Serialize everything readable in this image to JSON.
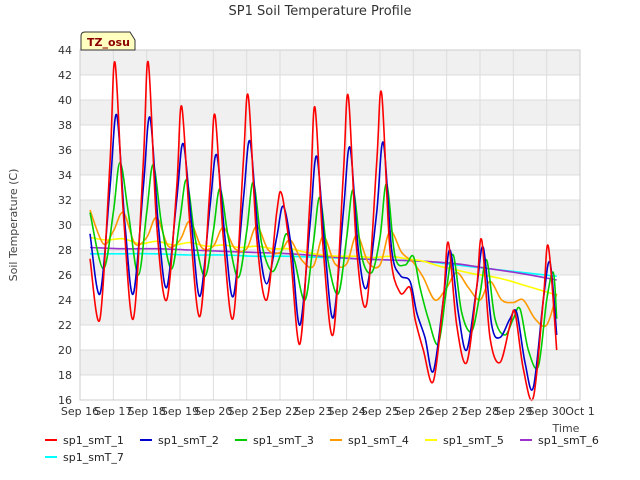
{
  "chart_data": {
    "type": "line",
    "title": "SP1 Soil Temperature Profile",
    "xlabel": "Time",
    "ylabel": "Soil Temperature (C)",
    "annotation": "TZ_osu",
    "ylim": [
      16,
      44
    ],
    "xlim": [
      0,
      15
    ],
    "x_unit": "days from Sep 16",
    "y_ticks": [
      16,
      18,
      20,
      22,
      24,
      26,
      28,
      30,
      32,
      34,
      36,
      38,
      40,
      42,
      44
    ],
    "x_ticks": [
      "Sep 16",
      "Sep 17",
      "Sep 18",
      "Sep 19",
      "Sep 20",
      "Sep 21",
      "Sep 22",
      "Sep 23",
      "Sep 24",
      "Sep 25",
      "Sep 26",
      "Sep 27",
      "Sep 28",
      "Sep 29",
      "Sep 30",
      "Oct 1"
    ],
    "grid": true,
    "legend_position": "bottom",
    "series": [
      {
        "name": "sp1_smT_1",
        "color": "#ff0000",
        "x": [
          0.3,
          0.6,
          0.9,
          1.05,
          1.3,
          1.6,
          1.9,
          2.05,
          2.3,
          2.6,
          2.9,
          3.05,
          3.3,
          3.6,
          3.9,
          4.05,
          4.3,
          4.6,
          4.9,
          5.05,
          5.3,
          5.6,
          5.9,
          6.05,
          6.3,
          6.6,
          6.9,
          7.05,
          7.3,
          7.6,
          7.9,
          8.05,
          8.3,
          8.6,
          8.9,
          9.05,
          9.3,
          9.6,
          9.9,
          10.05,
          10.3,
          10.6,
          10.9,
          11.05,
          11.3,
          11.6,
          11.9,
          12.05,
          12.3,
          12.6,
          12.9,
          13.05,
          13.3,
          13.6,
          13.9,
          14.05,
          14.3
        ],
        "y": [
          27.3,
          22.5,
          35,
          43,
          31,
          22.5,
          35,
          43,
          30,
          24,
          33,
          39.5,
          30,
          22.7,
          33,
          38.8,
          29,
          22.6,
          35,
          40.3,
          29,
          24,
          31,
          32.5,
          28,
          20.5,
          32,
          39.4,
          28,
          21.3,
          34,
          40.3,
          28,
          23.7,
          35,
          40.5,
          28,
          24.6,
          25,
          22.5,
          20,
          17.5,
          24,
          28.6,
          22,
          19,
          25,
          28.8,
          21,
          19,
          22,
          23,
          18.5,
          16.2,
          24,
          28.3,
          20
        ]
      },
      {
        "name": "sp1_smT_2",
        "color": "#0000cc",
        "x": [
          0.3,
          0.6,
          0.9,
          1.1,
          1.35,
          1.6,
          1.9,
          2.1,
          2.35,
          2.6,
          2.9,
          3.1,
          3.35,
          3.6,
          3.9,
          4.1,
          4.35,
          4.6,
          4.9,
          5.1,
          5.35,
          5.6,
          5.9,
          6.1,
          6.35,
          6.6,
          6.9,
          7.1,
          7.35,
          7.6,
          7.9,
          8.1,
          8.35,
          8.6,
          8.9,
          9.1,
          9.35,
          9.6,
          9.9,
          10.1,
          10.35,
          10.6,
          10.9,
          11.1,
          11.35,
          11.6,
          11.9,
          12.1,
          12.35,
          12.6,
          12.9,
          13.1,
          13.35,
          13.6,
          13.9,
          14.1,
          14.3
        ],
        "y": [
          29.3,
          24.5,
          33,
          38.8,
          30,
          24.5,
          33,
          38.6,
          30,
          25,
          32,
          36.5,
          30,
          24.3,
          31.5,
          35.6,
          29,
          24.3,
          32,
          36.7,
          29,
          25.3,
          29,
          31.5,
          28,
          22,
          30,
          35.5,
          28,
          22.6,
          31,
          36.2,
          28,
          25,
          31,
          36.6,
          28,
          26,
          25.5,
          23,
          21,
          18.3,
          24,
          28,
          23,
          20,
          25,
          28.2,
          22,
          21,
          22.5,
          23,
          19,
          17,
          24,
          27,
          21.2
        ]
      },
      {
        "name": "sp1_smT_3",
        "color": "#00cc00",
        "x": [
          0.3,
          0.7,
          1.0,
          1.2,
          1.45,
          1.75,
          2.0,
          2.2,
          2.45,
          2.75,
          3.0,
          3.2,
          3.45,
          3.75,
          4.0,
          4.2,
          4.45,
          4.75,
          5.0,
          5.2,
          5.45,
          5.75,
          6.0,
          6.2,
          6.45,
          6.75,
          7.0,
          7.2,
          7.45,
          7.75,
          8.0,
          8.2,
          8.45,
          8.75,
          9.0,
          9.2,
          9.45,
          9.75,
          10.0,
          10.2,
          10.45,
          10.75,
          11.0,
          11.2,
          11.45,
          11.75,
          12.0,
          12.2,
          12.45,
          12.75,
          13.0,
          13.2,
          13.45,
          13.75,
          14.0,
          14.2,
          14.3
        ],
        "y": [
          31,
          26.5,
          31,
          35,
          31,
          26,
          31,
          34.8,
          30,
          26.5,
          30.5,
          33.6,
          29,
          25.9,
          29.5,
          32.9,
          29,
          25.8,
          29.5,
          33.4,
          28.5,
          26.3,
          27.5,
          29.3,
          27,
          24,
          28.5,
          32.2,
          27,
          24.5,
          29,
          32.8,
          27.5,
          26.2,
          29,
          33.3,
          27.5,
          26.8,
          27.5,
          25,
          22.5,
          20.5,
          25,
          27.6,
          23,
          21.5,
          24.5,
          27.2,
          22.5,
          21.2,
          22.5,
          23.3,
          20,
          18.7,
          24,
          26.2,
          22.5
        ]
      },
      {
        "name": "sp1_smT_4",
        "color": "#ff9900",
        "x": [
          0.3,
          0.7,
          1.0,
          1.3,
          1.65,
          2.0,
          2.3,
          2.65,
          3.0,
          3.3,
          3.65,
          4.0,
          4.3,
          4.65,
          5.0,
          5.3,
          5.65,
          6.0,
          6.3,
          6.65,
          7.0,
          7.3,
          7.65,
          8.0,
          8.3,
          8.65,
          9.0,
          9.3,
          9.65,
          10.0,
          10.3,
          10.65,
          11.0,
          11.3,
          11.65,
          12.0,
          12.3,
          12.65,
          13.0,
          13.3,
          13.65,
          14.0,
          14.3
        ],
        "y": [
          31.2,
          28.5,
          29.5,
          31,
          28.5,
          29,
          30.6,
          28.3,
          28.8,
          30.3,
          28.2,
          28.3,
          29.8,
          28.1,
          28.1,
          29.9,
          28,
          27.8,
          28.8,
          27.2,
          26.7,
          29.1,
          26.9,
          26.9,
          29.2,
          27,
          26.8,
          29.5,
          27.8,
          27,
          25.8,
          24,
          25,
          26.2,
          25,
          24,
          25.5,
          24,
          23.8,
          24,
          22.5,
          22,
          24.5
        ]
      },
      {
        "name": "sp1_smT_5",
        "color": "#ffff00",
        "x": [
          0.3,
          0.8,
          1.3,
          1.8,
          2.3,
          2.8,
          3.3,
          3.8,
          4.3,
          4.8,
          5.3,
          5.8,
          6.3,
          6.8,
          7.3,
          7.8,
          8.3,
          8.8,
          9.3,
          9.8,
          10.3,
          10.8,
          11.3,
          11.8,
          12.3,
          12.8,
          13.3,
          13.8,
          14.3
        ],
        "y": [
          29,
          28.8,
          28.9,
          28.5,
          28.7,
          28.4,
          28.6,
          28.3,
          28.4,
          28.2,
          28.3,
          28.1,
          28.1,
          27.8,
          27.6,
          27.5,
          27.5,
          27.4,
          27.5,
          27.3,
          27.1,
          26.7,
          26.4,
          26.1,
          25.9,
          25.6,
          25.2,
          24.8,
          24.4
        ]
      },
      {
        "name": "sp1_smT_6",
        "color": "#9933cc",
        "x": [
          0.3,
          1.3,
          2.3,
          3.3,
          4.3,
          5.3,
          6.3,
          7.3,
          8.3,
          9.3,
          10.3,
          11.3,
          12.3,
          13.3,
          14.3
        ],
        "y": [
          28.2,
          28.1,
          28.1,
          28,
          27.9,
          27.8,
          27.7,
          27.5,
          27.3,
          27.2,
          27.1,
          26.9,
          26.5,
          26.1,
          25.6
        ]
      },
      {
        "name": "sp1_smT_7",
        "color": "#00ffff",
        "x": [
          0.3,
          1.3,
          2.3,
          3.3,
          4.3,
          5.3,
          6.3,
          7.3,
          8.3,
          9.3,
          10.3,
          11.3,
          12.3,
          13.3,
          14.3
        ],
        "y": [
          27.7,
          27.7,
          27.7,
          27.6,
          27.6,
          27.5,
          27.5,
          27.4,
          27.3,
          27.2,
          27.1,
          26.8,
          26.5,
          26.2,
          25.9
        ]
      }
    ]
  }
}
